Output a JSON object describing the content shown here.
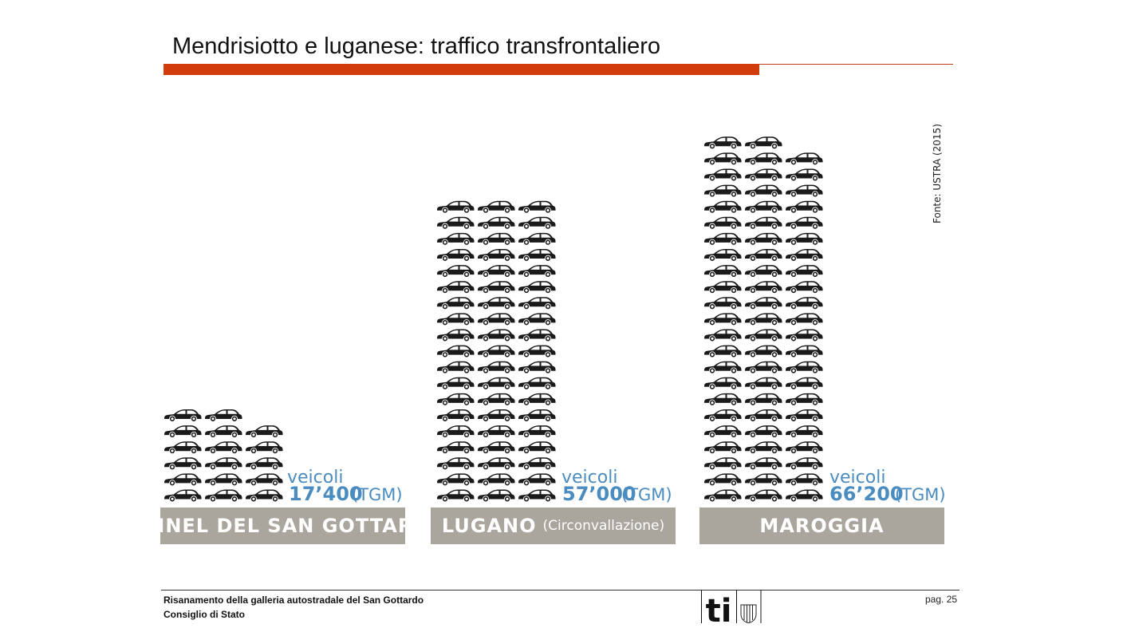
{
  "slide": {
    "title": "Mendrisiotto e luganese: traffico transfrontaliero",
    "source": "Fonte: USTRA (2015)",
    "footer_line1": "Risanamento della galleria autostradale del San Gottardo",
    "footer_line2": "Consiglio di Stato",
    "page_number": "pag. 25",
    "logo_text": "ti",
    "colors": {
      "accent": "#d23b0c",
      "value_blue": "#4b8cc0",
      "label_box": "#aaa59d",
      "car": "#1a1a1a"
    }
  },
  "chart_data": {
    "type": "bar",
    "title": "Mendrisiotto e luganese: traffico transfrontaliero",
    "categories": [
      "TUNNEL DEL SAN GOTTARDO",
      "LUGANO",
      "MAROGGIA"
    ],
    "category_subtitles": [
      "",
      "(Circonvallazione)",
      ""
    ],
    "values": [
      17400,
      57000,
      66200
    ],
    "value_labels": [
      "17’400",
      "57’000",
      "66’200"
    ],
    "value_prefix": "veicoli",
    "unit": "(TGM)",
    "icon": "car-icon",
    "icon_columns": [
      [
        6,
        6,
        5
      ],
      [
        19,
        19,
        19
      ],
      [
        23,
        23,
        22
      ]
    ],
    "grid": false,
    "legend": "none"
  }
}
